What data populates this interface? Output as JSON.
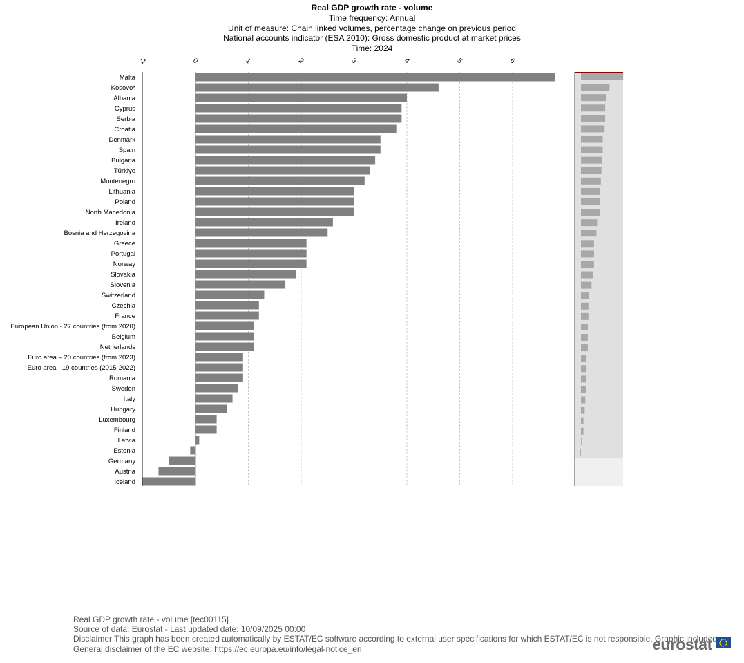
{
  "chart_data": {
    "type": "bar",
    "orientation": "horizontal",
    "title": "Real GDP growth rate - volume",
    "subtitles": [
      "Time frequency:  Annual",
      "Unit of measure:  Chain linked volumes, percentage change on previous period",
      "National accounts indicator (ESA 2010):  Gross domestic product at market prices",
      "Time:  2024"
    ],
    "xlim": [
      -1,
      7
    ],
    "x_ticks": [
      -1,
      0,
      1,
      2,
      3,
      4,
      5,
      6
    ],
    "grid": true,
    "categories": [
      "Malta",
      "Kosovo*",
      "Albania",
      "Cyprus",
      "Serbia",
      "Croatia",
      "Denmark",
      "Spain",
      "Bulgaria",
      "Türkiye",
      "Montenegro",
      "Lithuania",
      "Poland",
      "North Macedonia",
      "Ireland",
      "Bosnia and Herzegovina",
      "Greece",
      "Portugal",
      "Norway",
      "Slovakia",
      "Slovenia",
      "Switzerland",
      "Czechia",
      "France",
      "European Union - 27 countries (from 2020)",
      "Belgium",
      "Netherlands",
      "Euro area – 20 countries (from 2023)",
      "Euro area - 19 countries  (2015-2022)",
      "Romania",
      "Sweden",
      "Italy",
      "Hungary",
      "Luxembourg",
      "Finland",
      "Latvia",
      "Estonia",
      "Germany",
      "Austria",
      "Iceland"
    ],
    "values": [
      6.8,
      4.6,
      4.0,
      3.9,
      3.9,
      3.8,
      3.5,
      3.5,
      3.4,
      3.3,
      3.2,
      3.0,
      3.0,
      3.0,
      2.6,
      2.5,
      2.1,
      2.1,
      2.1,
      1.9,
      1.7,
      1.3,
      1.2,
      1.2,
      1.1,
      1.1,
      1.1,
      0.9,
      0.9,
      0.9,
      0.8,
      0.7,
      0.6,
      0.4,
      0.4,
      0.07,
      -0.1,
      -0.5,
      -0.7,
      -1.0
    ],
    "bar_color": "#808080",
    "navigator_color": "#a8a8a8",
    "navigator_bg": "#e0e0e0",
    "navigator_border": "#8b0000"
  },
  "footer": {
    "line1": "Real GDP growth rate - volume [tec00115]",
    "line2": "Source of data: Eurostat - Last updated date: 10/09/2025 00:00",
    "line3": "Disclaimer This graph has been created automatically by ESTAT/EC software according to external user specifications for which ESTAT/EC is not responsible. Graphic included",
    "line4": "General disclaimer of the EC website: https://ec.europa.eu/info/legal-notice_en"
  },
  "logo": {
    "text": "eurostat"
  }
}
